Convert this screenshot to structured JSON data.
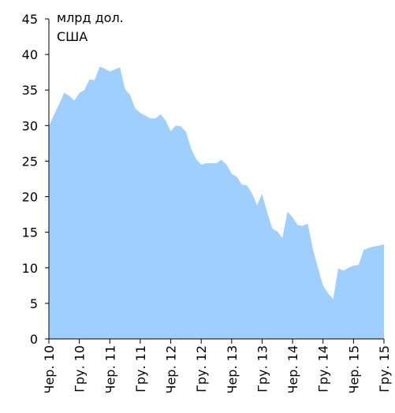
{
  "chart_data": {
    "type": "area",
    "unit_label": [
      "млрд дол.",
      "США"
    ],
    "categories": [
      "Чер. 10",
      null,
      null,
      null,
      null,
      null,
      "Гру. 10",
      null,
      null,
      null,
      null,
      null,
      "Чер. 11",
      null,
      null,
      null,
      null,
      null,
      "Гру. 11",
      null,
      null,
      null,
      null,
      null,
      "Чер. 12",
      null,
      null,
      null,
      null,
      null,
      "Гру. 12",
      null,
      null,
      null,
      null,
      null,
      "Чер. 13",
      null,
      null,
      null,
      null,
      null,
      "Гру. 13",
      null,
      null,
      null,
      null,
      null,
      "Чер. 14",
      null,
      null,
      null,
      null,
      null,
      "Гру. 14",
      null,
      null,
      null,
      null,
      null,
      "Чер. 15",
      null,
      null,
      null,
      null,
      null,
      "Гру. 15"
    ],
    "values": [
      29.9,
      31.5,
      33,
      34.6,
      34.2,
      33.5,
      34.6,
      35.0,
      36.5,
      36.4,
      38.3,
      38,
      37.6,
      37.9,
      38.2,
      35.1,
      34.3,
      32.4,
      31.8,
      31.4,
      31.0,
      31.0,
      31.6,
      30.7,
      29.2,
      30.0,
      29.9,
      29.1,
      26.8,
      25.3,
      24.5,
      24.7,
      24.7,
      24.7,
      25.2,
      24.5,
      23.2,
      22.8,
      21.7,
      21.6,
      20.5,
      18.8,
      20.4,
      17.8,
      15.5,
      15.1,
      14.2,
      17.9,
      17.1,
      16.0,
      15.9,
      16.2,
      12.6,
      10.0,
      7.5,
      6.4,
      5.6,
      9.9,
      9.6,
      10.0,
      10.3,
      10.4,
      12.5,
      12.8,
      13.0,
      13.1,
      13.3
    ],
    "color": "#9fcfff",
    "ylim": [
      0,
      45
    ],
    "yticks": [
      0,
      5,
      10,
      15,
      20,
      25,
      30,
      35,
      40,
      45
    ]
  }
}
